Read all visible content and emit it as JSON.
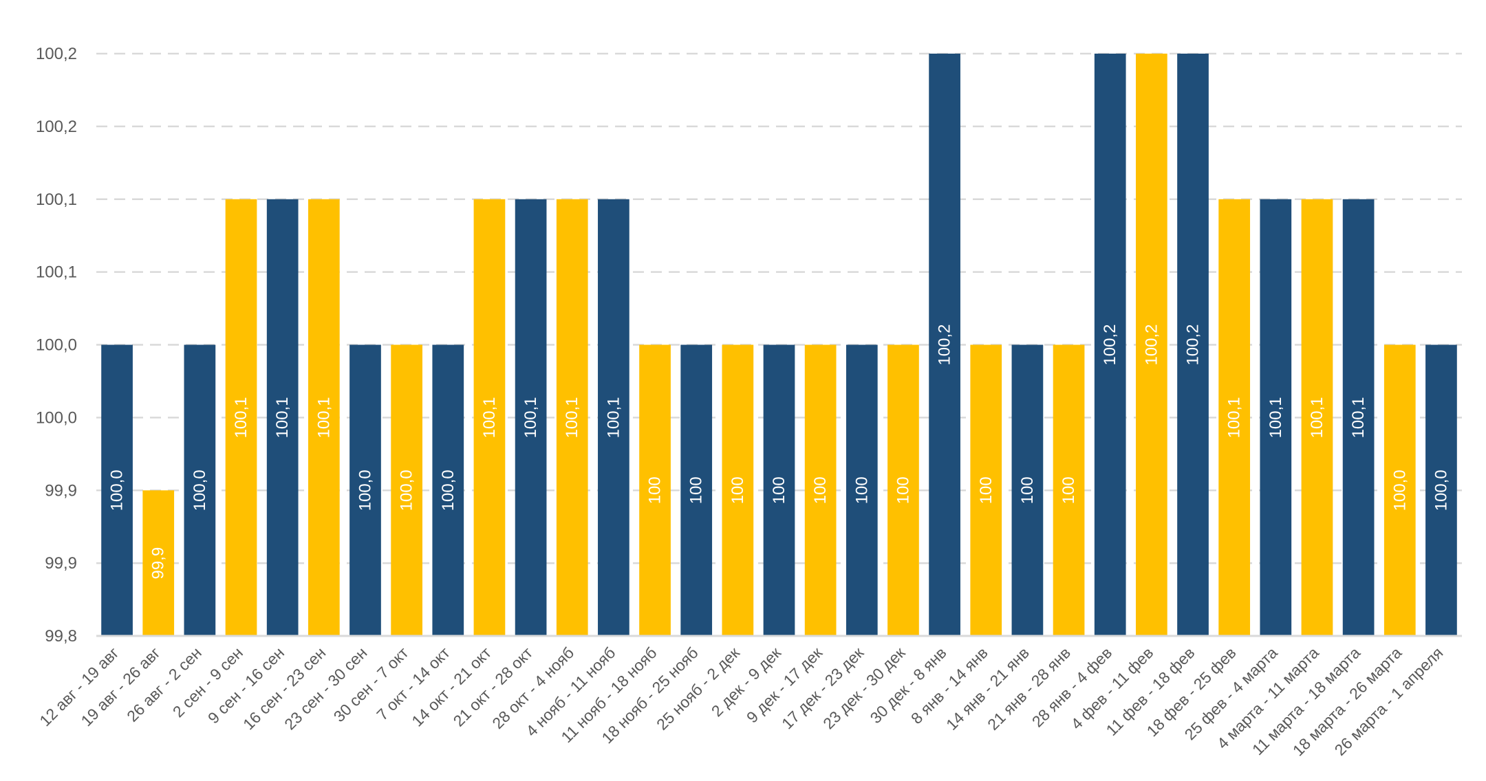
{
  "chart_data": {
    "type": "bar",
    "title": "",
    "xlabel": "",
    "ylabel": "",
    "ylim": [
      99.8,
      100.2
    ],
    "yticks": [
      99.8,
      99.85,
      99.9,
      99.95,
      100.0,
      100.05,
      100.1,
      100.15,
      100.2
    ],
    "ytick_labels": [
      "99,8",
      "99,9",
      "99,9",
      "100,0",
      "100,0",
      "100,1",
      "100,1",
      "100,2",
      "100,2"
    ],
    "grid": true,
    "legend": "none",
    "colors": {
      "navy": "#1f4e79",
      "gold": "#ffc000",
      "grid": "#d9d9d9",
      "axis_text": "#595959"
    },
    "categories": [
      "12 авг - 19 авг",
      "19 авг - 26 авг",
      "26 авг - 2 сен",
      "2 сен - 9 сен",
      "9 сен - 16 сен",
      "16 сен - 23 сен",
      "23 сен - 30 сен",
      "30 сен - 7 окт",
      "7 окт - 14 окт",
      "14 окт - 21 окт",
      "21 окт - 28 окт",
      "28 окт - 4 нояб",
      "4 нояб - 11 нояб",
      "11 нояб - 18 нояб",
      "18 нояб - 25 нояб",
      "25 нояб - 2 дек",
      "2 дек - 9 дек",
      "9 дек - 17 дек",
      "17 дек - 23 дек",
      "23 дек - 30 дек",
      "30 дек - 8 янв",
      "8 янв - 14 янв",
      "14 янв - 21 янв",
      "21 янв - 28 янв",
      "28 янв - 4 фев",
      "4 фев - 11 фев",
      "11 фев - 18 фев",
      "18 фев - 25 фев",
      "25 фев - 4 марта",
      "4 марта - 11 марта",
      "11 марта - 18 марта",
      "18 марта - 26 марта",
      "26 марта - 1 апреля"
    ],
    "values": [
      100.0,
      99.9,
      100.0,
      100.1,
      100.1,
      100.1,
      100.0,
      100.0,
      100.0,
      100.1,
      100.1,
      100.1,
      100.1,
      100.0,
      100.0,
      100.0,
      100.0,
      100.0,
      100.0,
      100.0,
      100.2,
      100.0,
      100.0,
      100.0,
      100.2,
      100.2,
      100.2,
      100.1,
      100.1,
      100.1,
      100.1,
      100.0,
      100.0
    ],
    "data_labels": [
      "100,0",
      "99,9",
      "100,0",
      "100,1",
      "100,1",
      "100,1",
      "100,0",
      "100,0",
      "100,0",
      "100,1",
      "100,1",
      "100,1",
      "100,1",
      "100",
      "100",
      "100",
      "100",
      "100",
      "100",
      "100",
      "100,2",
      "100",
      "100",
      "100",
      "100,2",
      "100,2",
      "100,2",
      "100,1",
      "100,1",
      "100,1",
      "100,1",
      "100,0",
      "100,0"
    ],
    "bar_colors": [
      "navy",
      "gold",
      "navy",
      "gold",
      "navy",
      "gold",
      "navy",
      "gold",
      "navy",
      "gold",
      "navy",
      "gold",
      "navy",
      "gold",
      "navy",
      "gold",
      "navy",
      "gold",
      "navy",
      "gold",
      "navy",
      "gold",
      "navy",
      "gold",
      "navy",
      "gold",
      "navy",
      "gold",
      "navy",
      "gold",
      "navy",
      "gold",
      "navy"
    ]
  }
}
